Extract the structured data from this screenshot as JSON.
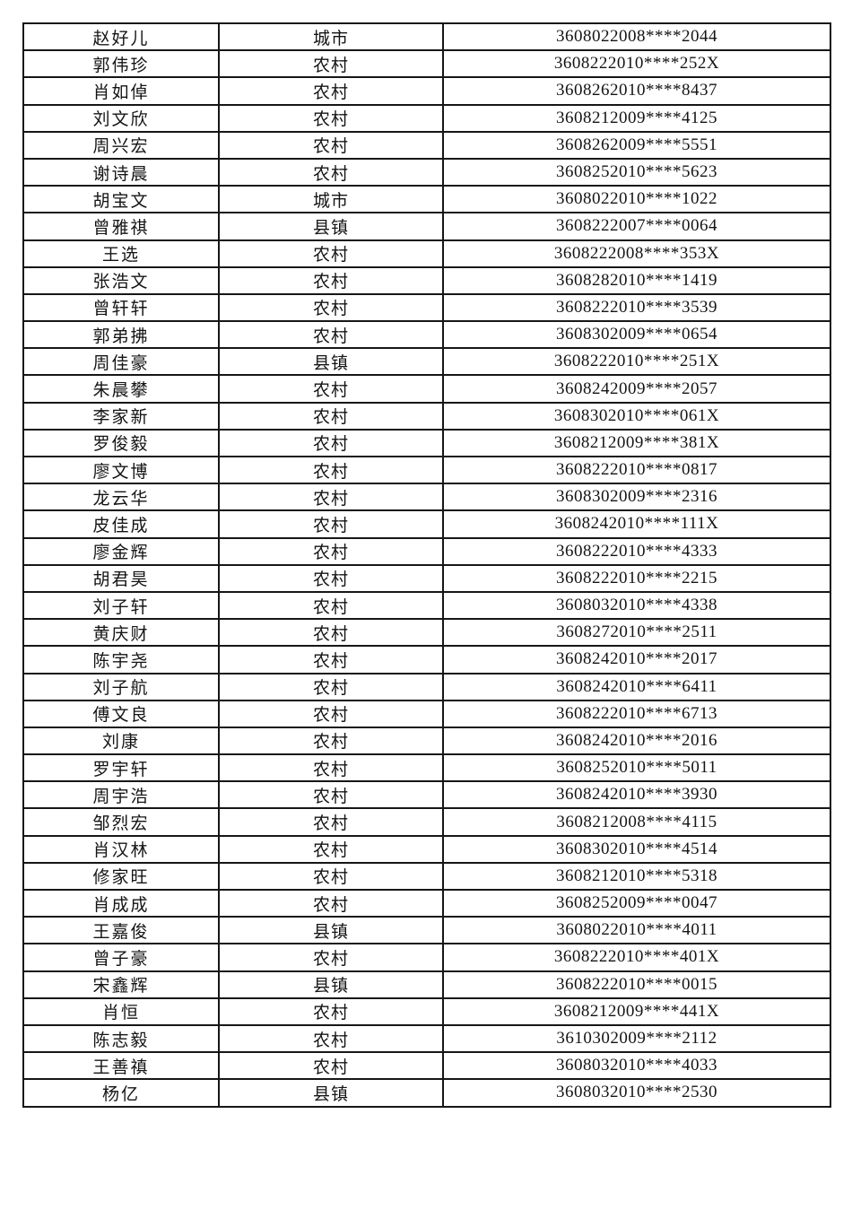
{
  "document": {
    "kind": "student-roster-table",
    "page_background": "#ffffff",
    "border_color": "#161616",
    "text_color": "#141414"
  },
  "table": {
    "columns": [
      {
        "key": "name"
      },
      {
        "key": "type"
      },
      {
        "key": "id"
      }
    ],
    "area_type_values_seen": [
      "城市",
      "农村",
      "县镇"
    ],
    "rows": [
      {
        "name": "赵好儿",
        "type": "城市",
        "id": "3608022008****2044"
      },
      {
        "name": "郭伟珍",
        "type": "农村",
        "id": "3608222010****252X"
      },
      {
        "name": "肖如倬",
        "type": "农村",
        "id": "3608262010****8437"
      },
      {
        "name": "刘文欣",
        "type": "农村",
        "id": "3608212009****4125"
      },
      {
        "name": "周兴宏",
        "type": "农村",
        "id": "3608262009****5551"
      },
      {
        "name": "谢诗晨",
        "type": "农村",
        "id": "3608252010****5623"
      },
      {
        "name": "胡宝文",
        "type": "城市",
        "id": "3608022010****1022"
      },
      {
        "name": "曾雅祺",
        "type": "县镇",
        "id": "3608222007****0064"
      },
      {
        "name": "王选",
        "type": "农村",
        "id": "3608222008****353X"
      },
      {
        "name": "张浩文",
        "type": "农村",
        "id": "3608282010****1419"
      },
      {
        "name": "曾轩轩",
        "type": "农村",
        "id": "3608222010****3539"
      },
      {
        "name": "郭弟拂",
        "type": "农村",
        "id": "3608302009****0654"
      },
      {
        "name": "周佳豪",
        "type": "县镇",
        "id": "3608222010****251X"
      },
      {
        "name": "朱晨攀",
        "type": "农村",
        "id": "3608242009****2057"
      },
      {
        "name": "李家新",
        "type": "农村",
        "id": "3608302010****061X"
      },
      {
        "name": "罗俊毅",
        "type": "农村",
        "id": "3608212009****381X"
      },
      {
        "name": "廖文博",
        "type": "农村",
        "id": "3608222010****0817"
      },
      {
        "name": "龙云华",
        "type": "农村",
        "id": "3608302009****2316"
      },
      {
        "name": "皮佳成",
        "type": "农村",
        "id": "3608242010****111X"
      },
      {
        "name": "廖金辉",
        "type": "农村",
        "id": "3608222010****4333"
      },
      {
        "name": "胡君昊",
        "type": "农村",
        "id": "3608222010****2215"
      },
      {
        "name": "刘子轩",
        "type": "农村",
        "id": "3608032010****4338"
      },
      {
        "name": "黄庆财",
        "type": "农村",
        "id": "3608272010****2511"
      },
      {
        "name": "陈宇尧",
        "type": "农村",
        "id": "3608242010****2017"
      },
      {
        "name": "刘子航",
        "type": "农村",
        "id": "3608242010****6411"
      },
      {
        "name": "傅文良",
        "type": "农村",
        "id": "3608222010****6713"
      },
      {
        "name": "刘康",
        "type": "农村",
        "id": "3608242010****2016"
      },
      {
        "name": "罗宇轩",
        "type": "农村",
        "id": "3608252010****5011"
      },
      {
        "name": "周宇浩",
        "type": "农村",
        "id": "3608242010****3930"
      },
      {
        "name": "邹烈宏",
        "type": "农村",
        "id": "3608212008****4115"
      },
      {
        "name": "肖汉林",
        "type": "农村",
        "id": "3608302010****4514"
      },
      {
        "name": "修家旺",
        "type": "农村",
        "id": "3608212010****5318"
      },
      {
        "name": "肖成成",
        "type": "农村",
        "id": "3608252009****0047"
      },
      {
        "name": "王嘉俊",
        "type": "县镇",
        "id": "3608022010****4011"
      },
      {
        "name": "曾子豪",
        "type": "农村",
        "id": "3608222010****401X"
      },
      {
        "name": "宋鑫辉",
        "type": "县镇",
        "id": "3608222010****0015"
      },
      {
        "name": "肖恒",
        "type": "农村",
        "id": "3608212009****441X"
      },
      {
        "name": "陈志毅",
        "type": "农村",
        "id": "3610302009****2112"
      },
      {
        "name": "王善禛",
        "type": "农村",
        "id": "3608032010****4033"
      },
      {
        "name": "杨亿",
        "type": "县镇",
        "id": "3608032010****2530"
      }
    ]
  }
}
